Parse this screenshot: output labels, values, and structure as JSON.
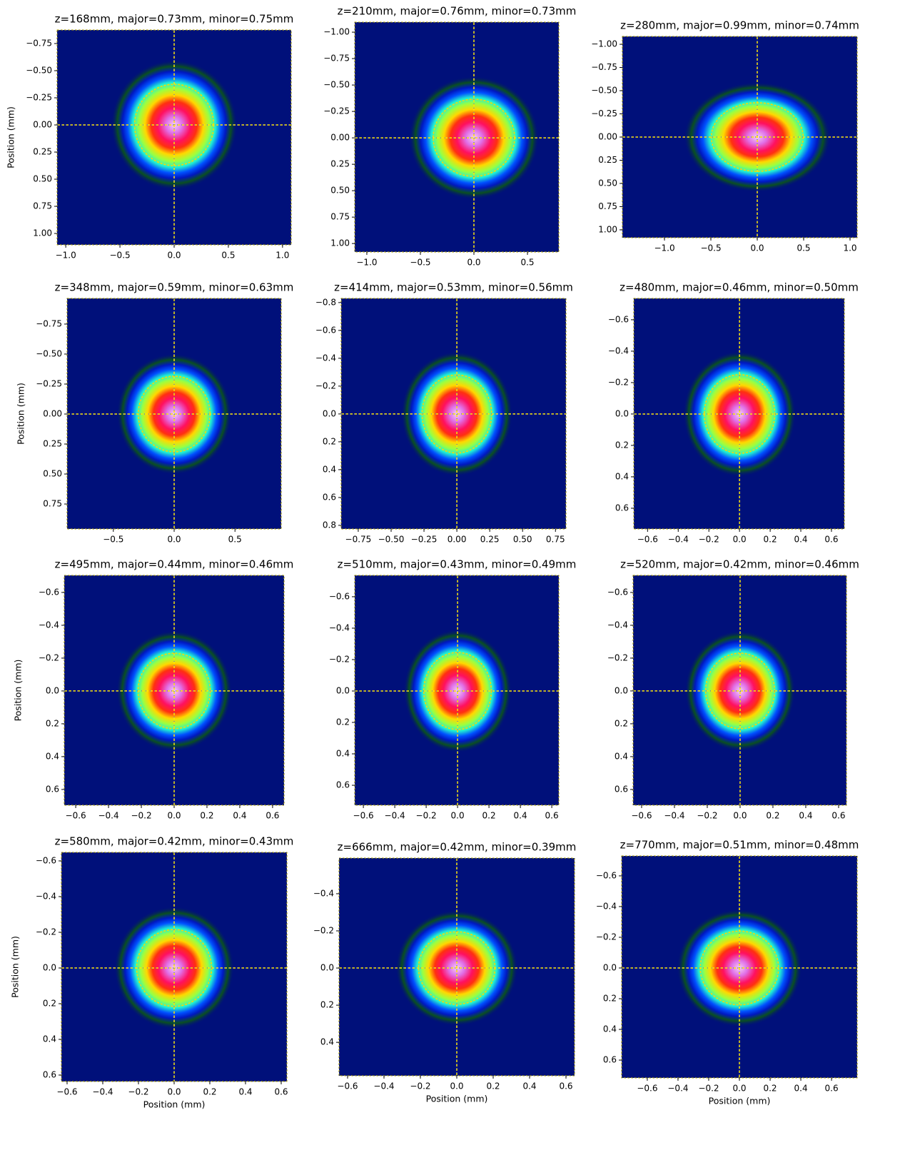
{
  "chart_data": [
    {
      "type": "heatmap",
      "title": "z=168mm, major=0.73mm, minor=0.75mm",
      "ylabel": "Position (mm)",
      "ellipse": {
        "major": 0.73,
        "minor": 0.75
      },
      "xlim": [
        -1.08,
        1.08
      ],
      "ylim": [
        1.105,
        -0.875
      ],
      "xticks": [
        {
          "value": -1,
          "label": "−1.0"
        },
        {
          "value": -0.5,
          "label": "−0.5"
        },
        {
          "value": 0,
          "label": "0.0"
        },
        0.5,
        {
          "value": 1,
          "label": "1.0"
        }
      ],
      "yticks": [
        {
          "value": -0.75,
          "label": "−0.75"
        },
        {
          "value": -0.5,
          "label": "−0.50"
        },
        {
          "value": -0.25,
          "label": "−0.25"
        },
        {
          "value": 0,
          "label": "0.00"
        },
        0.25,
        {
          "value": 0.5,
          "label": "0.50"
        },
        0.75,
        {
          "value": 1,
          "label": "1.00"
        }
      ]
    },
    {
      "type": "heatmap",
      "title": "z=210mm, major=0.76mm, minor=0.73mm",
      "ellipse": {
        "major": 0.76,
        "minor": 0.73
      },
      "xlim": [
        -1.113,
        0.793
      ],
      "ylim": [
        1.08,
        -1.095
      ],
      "xticks": [
        {
          "value": -1,
          "label": "−1.0"
        },
        {
          "value": -0.5,
          "label": "−0.5"
        },
        {
          "value": 0,
          "label": "0.0"
        },
        0.5
      ],
      "yticks": [
        {
          "value": -1,
          "label": "−1.00"
        },
        {
          "value": -0.75,
          "label": "−0.75"
        },
        {
          "value": -0.5,
          "label": "−0.50"
        },
        {
          "value": -0.25,
          "label": "−0.25"
        },
        {
          "value": 0,
          "label": "0.00"
        },
        0.25,
        {
          "value": 0.5,
          "label": "0.50"
        },
        0.75,
        {
          "value": 1,
          "label": "1.00"
        }
      ]
    },
    {
      "type": "heatmap",
      "title": "z=280mm, major=0.99mm, minor=0.74mm",
      "ellipse": {
        "major": 0.99,
        "minor": 0.74
      },
      "xlim": [
        -1.454,
        1.077
      ],
      "ylim": [
        1.085,
        -1.085
      ],
      "xticks": [
        {
          "value": -1,
          "label": "−1.0"
        },
        {
          "value": -0.5,
          "label": "−0.5"
        },
        {
          "value": 0,
          "label": "0.0"
        },
        0.5,
        {
          "value": 1,
          "label": "1.0"
        }
      ],
      "yticks": [
        {
          "value": -1,
          "label": "−1.00"
        },
        {
          "value": -0.75,
          "label": "−0.75"
        },
        {
          "value": -0.5,
          "label": "−0.50"
        },
        {
          "value": -0.25,
          "label": "−0.25"
        },
        {
          "value": 0,
          "label": "0.00"
        },
        0.25,
        {
          "value": 0.5,
          "label": "0.50"
        },
        0.75,
        {
          "value": 1,
          "label": "1.00"
        }
      ]
    },
    {
      "type": "heatmap",
      "title": "z=348mm, major=0.59mm, minor=0.63mm",
      "ylabel": "Position (mm)",
      "ellipse": {
        "major": 0.59,
        "minor": 0.63
      },
      "xlim": [
        -0.88,
        0.88
      ],
      "ylim": [
        0.958,
        -0.964
      ],
      "xticks": [
        {
          "value": -0.5,
          "label": "−0.5"
        },
        {
          "value": 0,
          "label": "0.0"
        },
        0.5
      ],
      "yticks": [
        {
          "value": -0.75,
          "label": "−0.75"
        },
        {
          "value": -0.5,
          "label": "−0.50"
        },
        {
          "value": -0.25,
          "label": "−0.25"
        },
        {
          "value": 0,
          "label": "0.00"
        },
        0.25,
        {
          "value": 0.5,
          "label": "0.50"
        },
        0.75
      ]
    },
    {
      "type": "heatmap",
      "title": "z=414mm, major=0.53mm, minor=0.56mm",
      "ellipse": {
        "major": 0.53,
        "minor": 0.56
      },
      "xlim": [
        -0.88,
        0.83
      ],
      "ylim": [
        0.826,
        -0.83
      ],
      "xticks": [
        {
          "value": -0.75,
          "label": "−0.75"
        },
        {
          "value": -0.5,
          "label": "−0.50"
        },
        {
          "value": -0.25,
          "label": "−0.25"
        },
        {
          "value": 0,
          "label": "0.00"
        },
        0.25,
        {
          "value": 0.5,
          "label": "0.50"
        },
        0.75
      ],
      "yticks": [
        {
          "value": -0.8,
          "label": "−0.8"
        },
        {
          "value": -0.6,
          "label": "−0.6"
        },
        {
          "value": -0.4,
          "label": "−0.4"
        },
        {
          "value": -0.2,
          "label": "−0.2"
        },
        {
          "value": 0,
          "label": "0.0"
        },
        0.2,
        0.4,
        0.6,
        0.8
      ]
    },
    {
      "type": "heatmap",
      "title": "z=480mm, major=0.46mm, minor=0.50mm",
      "ellipse": {
        "major": 0.46,
        "minor": 0.5
      },
      "xlim": [
        -0.69,
        0.684
      ],
      "ylim": [
        0.732,
        -0.736
      ],
      "xticks": [
        {
          "value": -0.6,
          "label": "−0.6"
        },
        {
          "value": -0.4,
          "label": "−0.4"
        },
        {
          "value": -0.2,
          "label": "−0.2"
        },
        {
          "value": 0,
          "label": "0.0"
        },
        0.2,
        0.4,
        0.6
      ],
      "yticks": [
        {
          "value": -0.6,
          "label": "−0.6"
        },
        {
          "value": -0.4,
          "label": "−0.4"
        },
        {
          "value": -0.2,
          "label": "−0.2"
        },
        {
          "value": 0,
          "label": "0.0"
        },
        0.2,
        0.4,
        0.6
      ]
    },
    {
      "type": "heatmap",
      "title": "z=495mm, major=0.44mm, minor=0.46mm",
      "ylabel": "Position (mm)",
      "ellipse": {
        "major": 0.44,
        "minor": 0.46
      },
      "xlim": [
        -0.67,
        0.67
      ],
      "ylim": [
        0.696,
        -0.704
      ],
      "xticks": [
        {
          "value": -0.6,
          "label": "−0.6"
        },
        {
          "value": -0.4,
          "label": "−0.4"
        },
        {
          "value": -0.2,
          "label": "−0.2"
        },
        {
          "value": 0,
          "label": "0.0"
        },
        0.2,
        0.4,
        0.6
      ],
      "yticks": [
        {
          "value": -0.6,
          "label": "−0.6"
        },
        {
          "value": -0.4,
          "label": "−0.4"
        },
        {
          "value": -0.2,
          "label": "−0.2"
        },
        {
          "value": 0,
          "label": "0.0"
        },
        0.2,
        0.4,
        0.6
      ]
    },
    {
      "type": "heatmap",
      "title": "z=510mm, major=0.43mm, minor=0.49mm",
      "ellipse": {
        "major": 0.43,
        "minor": 0.49
      },
      "xlim": [
        -0.655,
        0.645
      ],
      "ylim": [
        0.727,
        -0.736
      ],
      "xticks": [
        {
          "value": -0.6,
          "label": "−0.6"
        },
        {
          "value": -0.4,
          "label": "−0.4"
        },
        {
          "value": -0.2,
          "label": "−0.2"
        },
        {
          "value": 0,
          "label": "0.0"
        },
        0.2,
        0.4,
        0.6
      ],
      "yticks": [
        {
          "value": -0.6,
          "label": "−0.6"
        },
        {
          "value": -0.4,
          "label": "−0.4"
        },
        {
          "value": -0.2,
          "label": "−0.2"
        },
        {
          "value": 0,
          "label": "0.0"
        },
        0.2,
        0.4,
        0.6
      ]
    },
    {
      "type": "heatmap",
      "title": "z=520mm, major=0.42mm, minor=0.46mm",
      "ellipse": {
        "major": 0.42,
        "minor": 0.46
      },
      "xlim": [
        -0.652,
        0.648
      ],
      "ylim": [
        0.696,
        -0.704
      ],
      "xticks": [
        {
          "value": -0.6,
          "label": "−0.6"
        },
        {
          "value": -0.4,
          "label": "−0.4"
        },
        {
          "value": -0.2,
          "label": "−0.2"
        },
        {
          "value": 0,
          "label": "0.0"
        },
        0.2,
        0.4,
        0.6
      ],
      "yticks": [
        {
          "value": -0.6,
          "label": "−0.6"
        },
        {
          "value": -0.4,
          "label": "−0.4"
        },
        {
          "value": -0.2,
          "label": "−0.2"
        },
        {
          "value": 0,
          "label": "0.0"
        },
        0.2,
        0.4,
        0.6
      ]
    },
    {
      "type": "heatmap",
      "title": "z=580mm, major=0.42mm, minor=0.43mm",
      "xlabel": "Position (mm)",
      "ylabel": "Position (mm)",
      "ellipse": {
        "major": 0.42,
        "minor": 0.43
      },
      "xlim": [
        -0.632,
        0.632
      ],
      "ylim": [
        0.636,
        -0.648
      ],
      "xticks": [
        {
          "value": -0.6,
          "label": "−0.6"
        },
        {
          "value": -0.4,
          "label": "−0.4"
        },
        {
          "value": -0.2,
          "label": "−0.2"
        },
        {
          "value": 0,
          "label": "0.0"
        },
        0.2,
        0.4,
        0.6
      ],
      "yticks": [
        {
          "value": -0.6,
          "label": "−0.6"
        },
        {
          "value": -0.4,
          "label": "−0.4"
        },
        {
          "value": -0.2,
          "label": "−0.2"
        },
        {
          "value": 0,
          "label": "0.0"
        },
        0.2,
        0.4,
        0.6
      ]
    },
    {
      "type": "heatmap",
      "title": "z=666mm, major=0.42mm, minor=0.39mm",
      "xlabel": "Position (mm)",
      "ellipse": {
        "major": 0.42,
        "minor": 0.39
      },
      "xlim": [
        -0.647,
        0.647
      ],
      "ylim": [
        0.58,
        -0.592
      ],
      "xticks": [
        {
          "value": -0.6,
          "label": "−0.6"
        },
        {
          "value": -0.4,
          "label": "−0.4"
        },
        {
          "value": -0.2,
          "label": "−0.2"
        },
        {
          "value": 0,
          "label": "0.0"
        },
        0.2,
        0.4,
        0.6
      ],
      "yticks": [
        {
          "value": -0.4,
          "label": "−0.4"
        },
        {
          "value": -0.2,
          "label": "−0.2"
        },
        {
          "value": 0,
          "label": "0.0"
        },
        0.2,
        0.4
      ]
    },
    {
      "type": "heatmap",
      "title": "z=770mm, major=0.51mm, minor=0.48mm",
      "xlabel": "Position (mm)",
      "ellipse": {
        "major": 0.51,
        "minor": 0.48
      },
      "xlim": [
        -0.767,
        0.767
      ],
      "ylim": [
        0.716,
        -0.73
      ],
      "xticks": [
        {
          "value": -0.6,
          "label": "−0.6"
        },
        {
          "value": -0.4,
          "label": "−0.4"
        },
        {
          "value": -0.2,
          "label": "−0.2"
        },
        {
          "value": 0,
          "label": "0.0"
        },
        0.2,
        0.4,
        0.6
      ],
      "yticks": [
        {
          "value": -0.6,
          "label": "−0.6"
        },
        {
          "value": -0.4,
          "label": "−0.4"
        },
        {
          "value": -0.2,
          "label": "−0.2"
        },
        {
          "value": 0,
          "label": "0.0"
        },
        0.2,
        0.4,
        0.6
      ]
    }
  ]
}
